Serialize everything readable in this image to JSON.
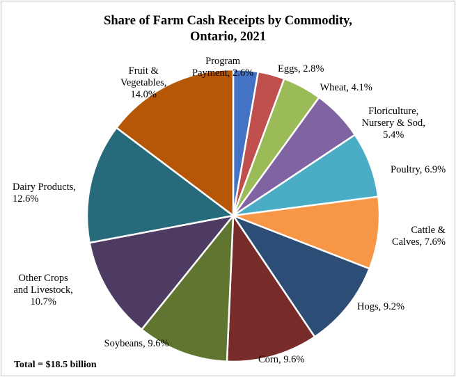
{
  "chart_data": {
    "type": "pie",
    "title_lines": [
      "Share of Farm Cash Receipts by Commodity,",
      "Ontario, 2021"
    ],
    "unit": "%",
    "footnote": "Total = $18.5 billion",
    "start_angle": "12 o'clock",
    "direction": "clockwise",
    "slices": [
      {
        "name": "Program Payment",
        "value": 2.6,
        "label_lines": [
          "Program",
          "Payment, 2.6%"
        ],
        "color": "#4472c4"
      },
      {
        "name": "Eggs",
        "value": 2.8,
        "label_lines": [
          "Eggs, 2.8%"
        ],
        "color": "#c0504d"
      },
      {
        "name": "Wheat",
        "value": 4.1,
        "label_lines": [
          "Wheat, 4.1%"
        ],
        "color": "#9bbb59"
      },
      {
        "name": "Floriculture, Nursery & Sod",
        "value": 5.4,
        "label_lines": [
          "Floriculture,",
          "Nursery & Sod,",
          "5.4%"
        ],
        "color": "#8064a2"
      },
      {
        "name": "Poultry",
        "value": 6.9,
        "label_lines": [
          "Poultry, 6.9%"
        ],
        "color": "#4bacc6"
      },
      {
        "name": "Cattle & Calves",
        "value": 7.6,
        "label_lines": [
          "Cattle &",
          "Calves, 7.6%"
        ],
        "color": "#f79646"
      },
      {
        "name": "Hogs",
        "value": 9.2,
        "label_lines": [
          "Hogs, 9.2%"
        ],
        "color": "#2c4d75"
      },
      {
        "name": "Corn",
        "value": 9.6,
        "label_lines": [
          "Corn, 9.6%"
        ],
        "color": "#772c2a"
      },
      {
        "name": "Soybeans",
        "value": 9.6,
        "label_lines": [
          "Soybeans, 9.6%"
        ],
        "color": "#5f7530"
      },
      {
        "name": "Other Crops and Livestock",
        "value": 10.7,
        "label_lines": [
          "Other Crops",
          "and Livestock,",
          "10.7%"
        ],
        "color": "#4d3b62"
      },
      {
        "name": "Dairy Products",
        "value": 12.6,
        "label_lines": [
          "Dairy Products,",
          "12.6%"
        ],
        "color": "#276a7c"
      },
      {
        "name": "Fruit & Vegetables",
        "value": 14.0,
        "label_lines": [
          "Fruit &",
          "Vegetables,",
          "14.0%"
        ],
        "color": "#b65708"
      }
    ]
  }
}
